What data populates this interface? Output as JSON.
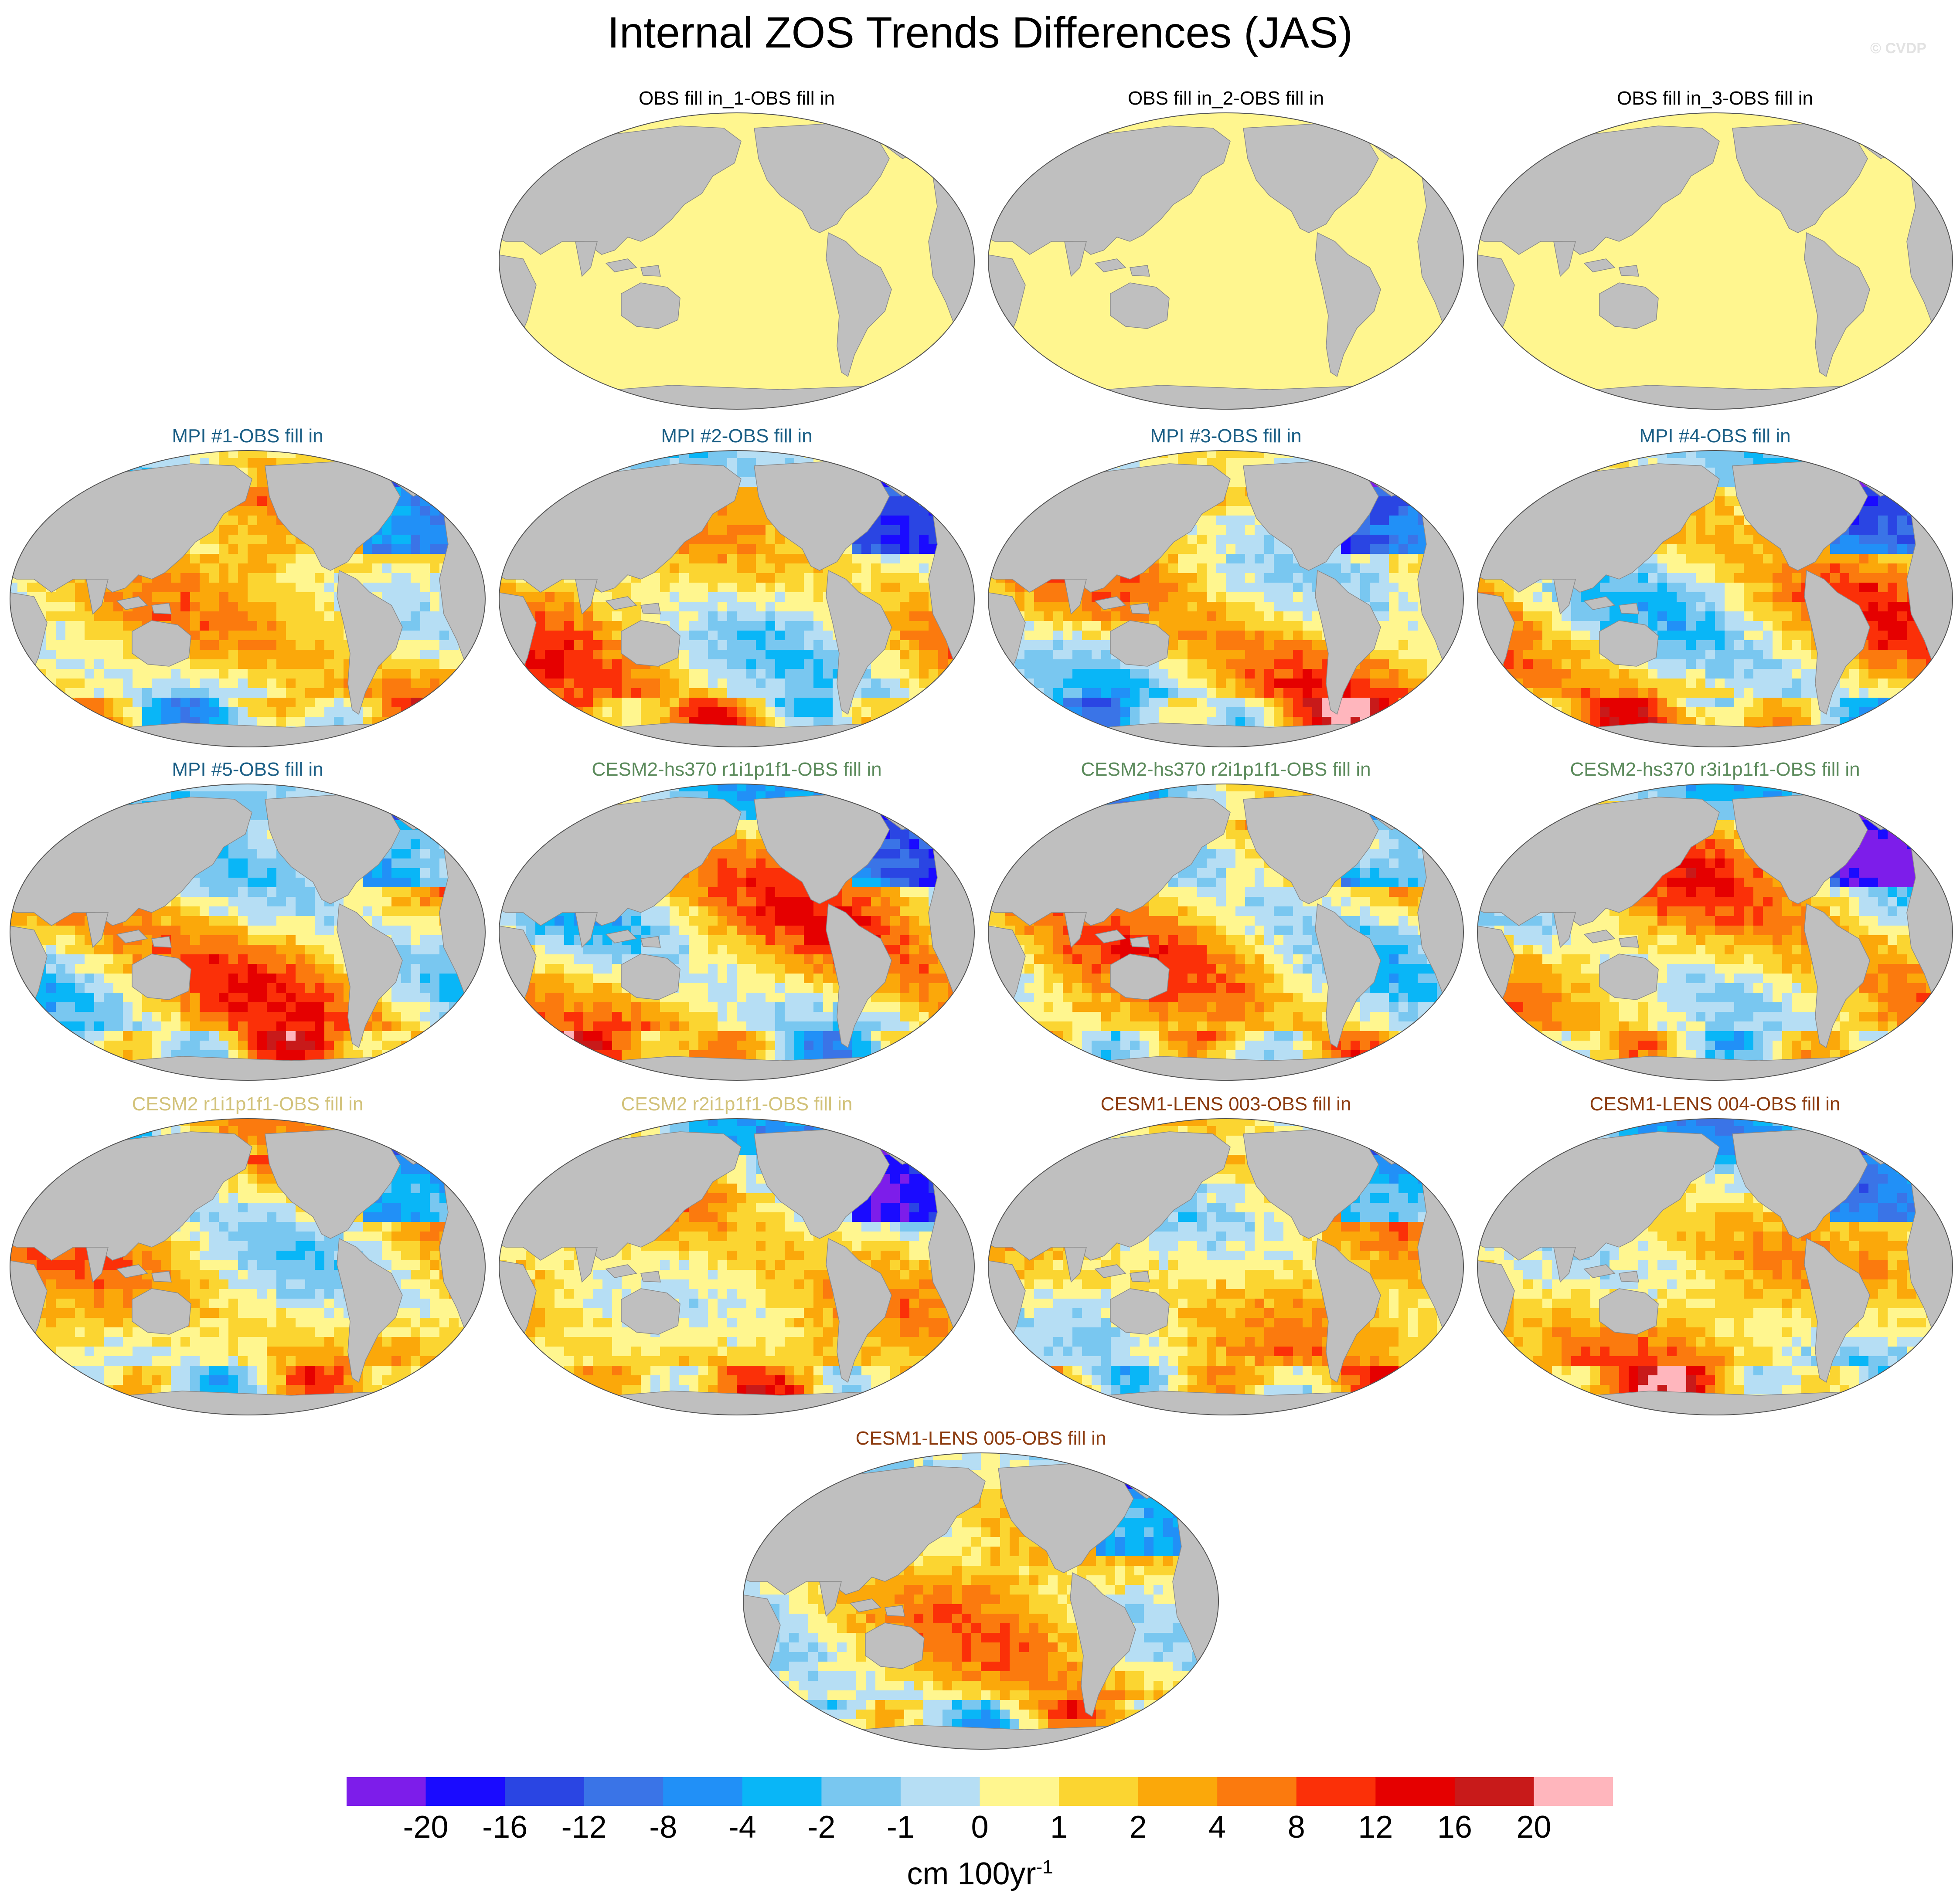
{
  "title": "Internal ZOS Trends Differences (JAS)",
  "watermark": "© CVDP",
  "land_color": "#bfbfbf",
  "zero_fill_color": "#fff68f",
  "panels": [
    {
      "title": "OBS fill in_1-OBS fill in",
      "title_color": "#000000",
      "pattern": "uniform"
    },
    {
      "title": "OBS fill in_2-OBS fill in",
      "title_color": "#000000",
      "pattern": "uniform"
    },
    {
      "title": "OBS fill in_3-OBS fill in",
      "title_color": "#000000",
      "pattern": "uniform"
    },
    {
      "title": "MPI #1-OBS fill in",
      "title_color": "#1a5e85",
      "pattern": "field"
    },
    {
      "title": "MPI #2-OBS fill in",
      "title_color": "#1a5e85",
      "pattern": "field"
    },
    {
      "title": "MPI #3-OBS fill in",
      "title_color": "#1a5e85",
      "pattern": "field"
    },
    {
      "title": "MPI #4-OBS fill in",
      "title_color": "#1a5e85",
      "pattern": "field"
    },
    {
      "title": "MPI #5-OBS fill in",
      "title_color": "#1a5e85",
      "pattern": "field"
    },
    {
      "title": "CESM2-hs370 r1i1p1f1-OBS fill in",
      "title_color": "#5b8a5b",
      "pattern": "field"
    },
    {
      "title": "CESM2-hs370 r2i1p1f1-OBS fill in",
      "title_color": "#5b8a5b",
      "pattern": "field"
    },
    {
      "title": "CESM2-hs370 r3i1p1f1-OBS fill in",
      "title_color": "#5b8a5b",
      "pattern": "field"
    },
    {
      "title": "CESM2 r1i1p1f1-OBS fill in",
      "title_color": "#d2c27a",
      "pattern": "field"
    },
    {
      "title": "CESM2 r2i1p1f1-OBS fill in",
      "title_color": "#d2c27a",
      "pattern": "field"
    },
    {
      "title": "CESM1-LENS 003-OBS fill in",
      "title_color": "#8b3a0e",
      "pattern": "field"
    },
    {
      "title": "CESM1-LENS 004-OBS fill in",
      "title_color": "#8b3a0e",
      "pattern": "field"
    },
    {
      "title": "CESM1-LENS 005-OBS fill in",
      "title_color": "#8b3a0e",
      "pattern": "field"
    }
  ],
  "colorbar": {
    "colors": [
      "#7d1dea",
      "#1a0bff",
      "#2a45e3",
      "#3a74e7",
      "#2190f7",
      "#09b6f7",
      "#79c7f0",
      "#b6def4",
      "#fff68f",
      "#fbd531",
      "#fba80a",
      "#fb7a0e",
      "#fb3008",
      "#e50000",
      "#c81a1a",
      "#ffb6bd"
    ],
    "labels": [
      "-20",
      "-16",
      "-12",
      "-8",
      "-4",
      "-2",
      "-1",
      "0",
      "1",
      "2",
      "4",
      "8",
      "12",
      "16",
      "20"
    ],
    "units": "cm 100yr",
    "units_superscript": "-1"
  }
}
